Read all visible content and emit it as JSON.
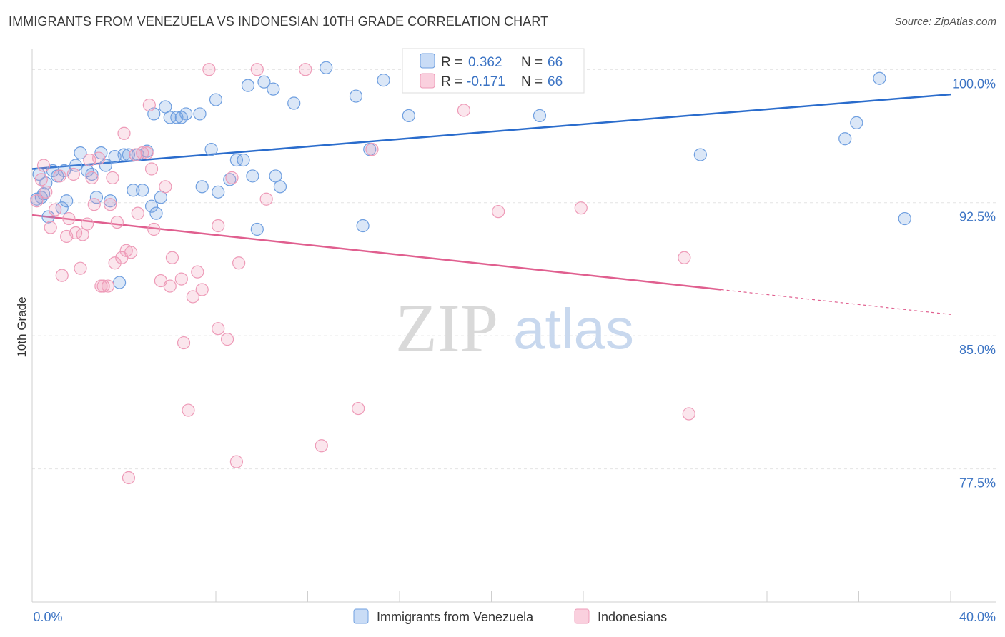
{
  "title": "IMMIGRANTS FROM VENEZUELA VS INDONESIAN 10TH GRADE CORRELATION CHART",
  "source": "Source: ZipAtlas.com",
  "watermark": {
    "part1": "ZIP",
    "part2": "atlas"
  },
  "chart_data": {
    "type": "scatter",
    "title": "IMMIGRANTS FROM VENEZUELA VS INDONESIAN 10TH GRADE CORRELATION CHART",
    "xlabel": "",
    "ylabel": "10th Grade",
    "xlim": [
      0.0,
      40.0
    ],
    "ylim": [
      70.0,
      101.5
    ],
    "x_tick_labels": [
      "0.0%",
      "40.0%"
    ],
    "y_ticks": [
      77.5,
      85.0,
      92.5,
      100.0
    ],
    "y_tick_labels": [
      "77.5%",
      "85.0%",
      "92.5%",
      "100.0%"
    ],
    "grid": true,
    "legend_position": "top-center",
    "stats": [
      {
        "r_label": "R =",
        "r_value": "0.362",
        "n_label": "N =",
        "n_value": "66"
      },
      {
        "r_label": "R =",
        "r_value": "-0.171",
        "n_label": "N =",
        "n_value": "66"
      }
    ],
    "series": [
      {
        "name": "Immigrants from Venezuela",
        "color": "#6f9fe0",
        "line_color": "#2a6ccc",
        "trend": {
          "x": [
            0.0,
            40.0
          ],
          "y": [
            94.4,
            98.6
          ],
          "solid_until": 40.0
        },
        "points": [
          [
            0.3,
            94.1
          ],
          [
            0.5,
            93.0
          ],
          [
            0.4,
            92.8
          ],
          [
            0.9,
            94.3
          ],
          [
            0.7,
            91.7
          ],
          [
            1.1,
            94.0
          ],
          [
            1.3,
            92.2
          ],
          [
            1.5,
            92.6
          ],
          [
            1.4,
            94.3
          ],
          [
            1.9,
            94.6
          ],
          [
            2.1,
            95.3
          ],
          [
            2.4,
            94.3
          ],
          [
            2.6,
            94.1
          ],
          [
            2.8,
            92.8
          ],
          [
            3.0,
            95.3
          ],
          [
            3.2,
            94.6
          ],
          [
            3.4,
            92.6
          ],
          [
            3.6,
            95.1
          ],
          [
            3.8,
            88.0
          ],
          [
            4.0,
            95.2
          ],
          [
            4.2,
            95.2
          ],
          [
            4.4,
            93.2
          ],
          [
            4.6,
            95.2
          ],
          [
            4.8,
            93.2
          ],
          [
            5.0,
            95.4
          ],
          [
            5.2,
            92.3
          ],
          [
            5.3,
            97.5
          ],
          [
            5.4,
            91.9
          ],
          [
            5.6,
            92.8
          ],
          [
            5.8,
            97.9
          ],
          [
            6.0,
            97.3
          ],
          [
            6.3,
            97.3
          ],
          [
            6.5,
            97.3
          ],
          [
            6.7,
            97.5
          ],
          [
            7.3,
            97.5
          ],
          [
            7.4,
            93.4
          ],
          [
            7.8,
            95.5
          ],
          [
            8.0,
            98.3
          ],
          [
            8.1,
            93.1
          ],
          [
            8.6,
            93.8
          ],
          [
            8.9,
            94.9
          ],
          [
            9.2,
            94.9
          ],
          [
            9.4,
            99.1
          ],
          [
            9.6,
            94.0
          ],
          [
            9.8,
            91.0
          ],
          [
            10.1,
            99.3
          ],
          [
            10.5,
            98.9
          ],
          [
            10.6,
            94.0
          ],
          [
            10.8,
            93.4
          ],
          [
            11.4,
            98.1
          ],
          [
            12.8,
            100.1
          ],
          [
            14.1,
            98.5
          ],
          [
            14.4,
            91.2
          ],
          [
            14.7,
            95.5
          ],
          [
            15.3,
            99.4
          ],
          [
            16.4,
            97.4
          ],
          [
            17.1,
            100.0
          ],
          [
            22.1,
            97.4
          ],
          [
            22.8,
            100.0
          ],
          [
            29.1,
            95.2
          ],
          [
            35.4,
            96.1
          ],
          [
            35.9,
            97.0
          ],
          [
            36.9,
            99.5
          ],
          [
            38.0,
            91.6
          ],
          [
            0.2,
            92.7
          ],
          [
            0.6,
            93.6
          ]
        ]
      },
      {
        "name": "Indonesians",
        "color": "#ee9bb8",
        "line_color": "#e05f8f",
        "trend": {
          "x": [
            0.0,
            40.0
          ],
          "y": [
            91.8,
            86.2
          ],
          "solid_until": 30.0
        },
        "points": [
          [
            0.2,
            92.6
          ],
          [
            0.4,
            93.8
          ],
          [
            0.6,
            93.1
          ],
          [
            0.8,
            91.1
          ],
          [
            1.0,
            92.1
          ],
          [
            1.2,
            94.0
          ],
          [
            1.3,
            88.4
          ],
          [
            1.5,
            90.6
          ],
          [
            1.6,
            91.6
          ],
          [
            1.8,
            94.1
          ],
          [
            1.9,
            90.8
          ],
          [
            2.1,
            88.8
          ],
          [
            2.2,
            90.7
          ],
          [
            2.4,
            91.3
          ],
          [
            2.5,
            94.9
          ],
          [
            2.6,
            93.9
          ],
          [
            2.7,
            92.4
          ],
          [
            2.9,
            95.0
          ],
          [
            3.0,
            87.8
          ],
          [
            3.1,
            87.8
          ],
          [
            3.3,
            87.8
          ],
          [
            3.4,
            92.4
          ],
          [
            3.5,
            93.9
          ],
          [
            3.6,
            89.1
          ],
          [
            3.7,
            91.4
          ],
          [
            3.9,
            89.4
          ],
          [
            4.0,
            96.4
          ],
          [
            4.1,
            89.8
          ],
          [
            4.2,
            77.0
          ],
          [
            4.3,
            89.7
          ],
          [
            4.5,
            95.2
          ],
          [
            4.6,
            91.9
          ],
          [
            4.8,
            95.3
          ],
          [
            5.0,
            95.3
          ],
          [
            5.1,
            98.0
          ],
          [
            5.2,
            94.4
          ],
          [
            5.3,
            91.0
          ],
          [
            5.6,
            88.1
          ],
          [
            5.8,
            93.4
          ],
          [
            6.0,
            87.8
          ],
          [
            6.1,
            89.4
          ],
          [
            6.5,
            88.2
          ],
          [
            6.6,
            84.6
          ],
          [
            6.8,
            80.8
          ],
          [
            7.0,
            87.2
          ],
          [
            7.2,
            88.6
          ],
          [
            7.4,
            87.6
          ],
          [
            7.7,
            100.0
          ],
          [
            8.1,
            91.2
          ],
          [
            8.1,
            85.4
          ],
          [
            8.5,
            84.8
          ],
          [
            8.7,
            93.9
          ],
          [
            8.9,
            77.9
          ],
          [
            9.0,
            89.1
          ],
          [
            9.8,
            100.0
          ],
          [
            10.2,
            92.7
          ],
          [
            11.9,
            100.0
          ],
          [
            12.6,
            78.8
          ],
          [
            14.2,
            80.9
          ],
          [
            14.8,
            95.5
          ],
          [
            18.8,
            97.7
          ],
          [
            20.3,
            92.0
          ],
          [
            23.9,
            92.2
          ],
          [
            28.4,
            89.4
          ],
          [
            28.6,
            80.6
          ],
          [
            0.5,
            94.6
          ]
        ]
      }
    ]
  }
}
